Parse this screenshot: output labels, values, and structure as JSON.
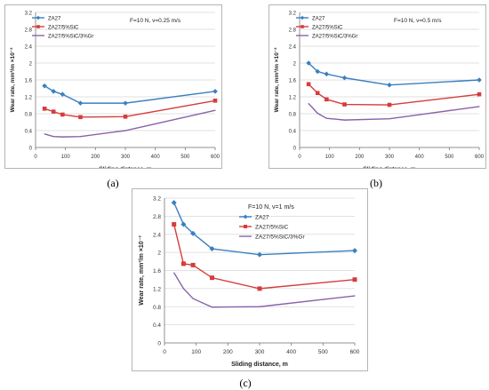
{
  "chart_data": [
    {
      "type": "line",
      "caption": "(a)",
      "condition": "F=10 N,  v=0.25 m/s",
      "xlabel": "Sliding distance,  m",
      "ylabel": "Wear rate,  mm³/m ×10⁻³",
      "xlim": [
        0,
        600
      ],
      "ylim": [
        0,
        3.2
      ],
      "xticks": [
        0,
        100,
        200,
        300,
        400,
        500,
        600
      ],
      "yticks": [
        0,
        0.4,
        0.8,
        1.2,
        1.6,
        2,
        2.4,
        2.8,
        3.2
      ],
      "grid": true,
      "legend": "top-left",
      "series": [
        {
          "name": "ZA27",
          "color": "#3a7fc1",
          "marker": "diamond",
          "x": [
            30,
            60,
            90,
            150,
            300,
            600
          ],
          "y": [
            1.46,
            1.33,
            1.26,
            1.05,
            1.05,
            1.33
          ]
        },
        {
          "name": "ZA27/5%SiC",
          "color": "#d63c3c",
          "marker": "square",
          "x": [
            30,
            60,
            90,
            150,
            300,
            600
          ],
          "y": [
            0.92,
            0.85,
            0.78,
            0.72,
            0.73,
            1.11
          ]
        },
        {
          "name": "ZA27/5%SiC/3%Gr",
          "color": "#8a62a8",
          "marker": "none",
          "x": [
            30,
            60,
            90,
            150,
            300,
            600
          ],
          "y": [
            0.32,
            0.26,
            0.25,
            0.26,
            0.4,
            0.88
          ]
        }
      ]
    },
    {
      "type": "line",
      "caption": "(b)",
      "condition": "F=10 N,  v=0.5 m/s",
      "xlabel": "Sliding distance,  m",
      "ylabel": "Wear rate,  mm³/m ×10⁻³",
      "xlim": [
        0,
        600
      ],
      "ylim": [
        0,
        3.2
      ],
      "xticks": [
        0,
        100,
        200,
        300,
        400,
        500,
        600
      ],
      "yticks": [
        0,
        0.4,
        0.8,
        1.2,
        1.6,
        2,
        2.4,
        2.8,
        3.2
      ],
      "grid": true,
      "legend": "top-left",
      "series": [
        {
          "name": "ZA27",
          "color": "#3a7fc1",
          "marker": "diamond",
          "x": [
            30,
            60,
            90,
            150,
            300,
            600
          ],
          "y": [
            2.0,
            1.8,
            1.74,
            1.65,
            1.48,
            1.6
          ]
        },
        {
          "name": "ZA27/5%SiC",
          "color": "#d63c3c",
          "marker": "square",
          "x": [
            30,
            60,
            90,
            150,
            300,
            600
          ],
          "y": [
            1.5,
            1.29,
            1.14,
            1.02,
            1.01,
            1.26
          ]
        },
        {
          "name": "ZA27/5%SiC/3%Gr",
          "color": "#8a62a8",
          "marker": "none",
          "x": [
            30,
            60,
            90,
            150,
            300,
            600
          ],
          "y": [
            1.04,
            0.81,
            0.69,
            0.65,
            0.68,
            0.97
          ]
        }
      ]
    },
    {
      "type": "line",
      "caption": "(c)",
      "condition": "F=10 N,  v=1 m/s",
      "xlabel": "Sliding distance,  m",
      "ylabel": "Wear rate,  mm³/m ×10⁻³",
      "xlim": [
        0,
        600
      ],
      "ylim": [
        0,
        3.2
      ],
      "xticks": [
        0,
        100,
        200,
        300,
        400,
        500,
        600
      ],
      "yticks": [
        0,
        0.4,
        0.8,
        1.2,
        1.6,
        2,
        2.4,
        2.8,
        3.2
      ],
      "grid": true,
      "legend": "top-right",
      "series": [
        {
          "name": "ZA27",
          "color": "#3a7fc1",
          "marker": "diamond",
          "x": [
            30,
            60,
            90,
            150,
            300,
            600
          ],
          "y": [
            3.1,
            2.62,
            2.42,
            2.08,
            1.95,
            2.04
          ]
        },
        {
          "name": "ZA27/5%SiC",
          "color": "#d63c3c",
          "marker": "square",
          "x": [
            30,
            60,
            90,
            150,
            300,
            600
          ],
          "y": [
            2.62,
            1.75,
            1.72,
            1.44,
            1.2,
            1.4
          ]
        },
        {
          "name": "ZA27/5%SiC/3%Gr",
          "color": "#8a62a8",
          "marker": "none",
          "x": [
            30,
            60,
            90,
            150,
            300,
            600
          ],
          "y": [
            1.55,
            1.2,
            0.98,
            0.79,
            0.8,
            1.04
          ]
        }
      ]
    }
  ]
}
